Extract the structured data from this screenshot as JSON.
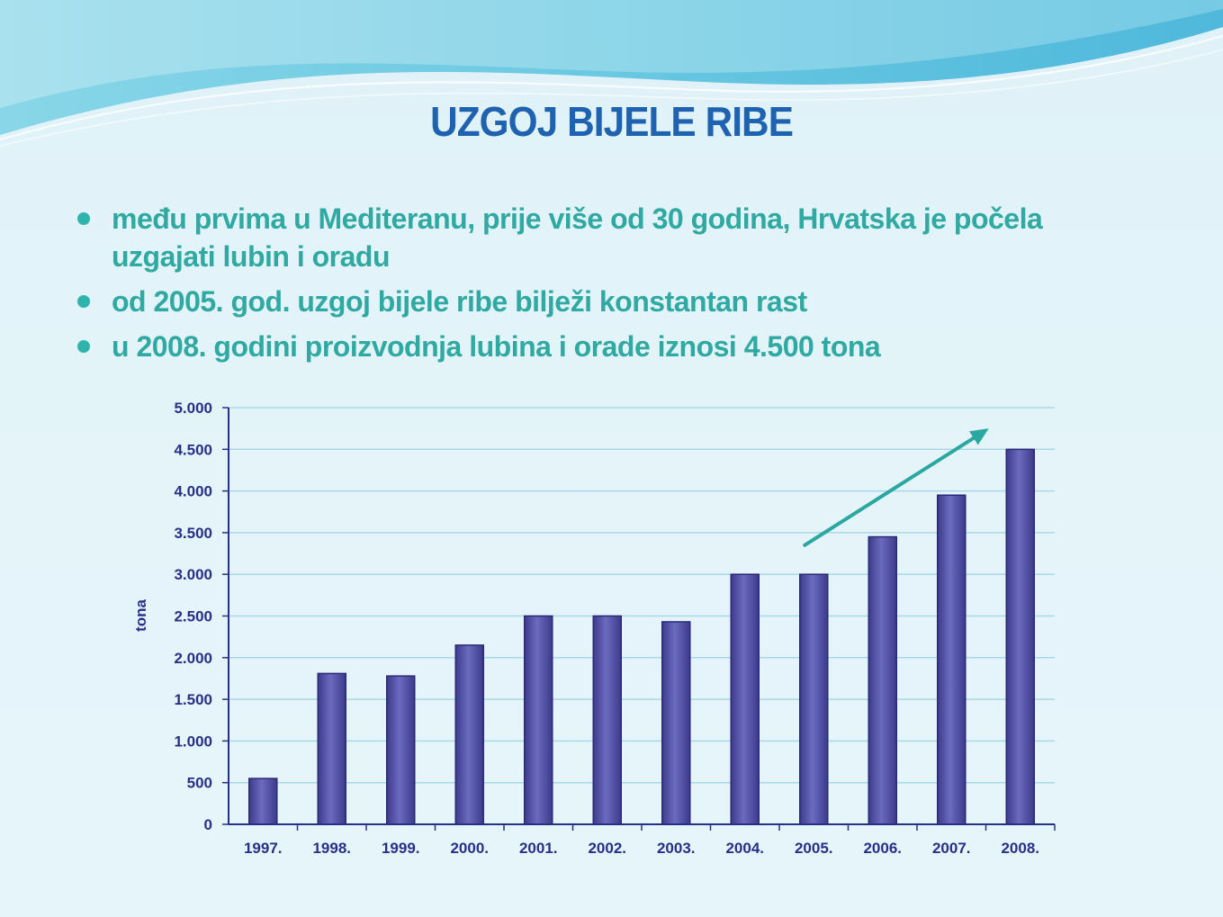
{
  "slide": {
    "title": "UZGOJ BIJELE RIBE",
    "bullets": [
      {
        "text": "među prvima u Mediteranu, prije više od 30 godina, Hrvatska je počela uzgajati lubin i oradu"
      },
      {
        "text": "od 2005. god. uzgoj bijele ribe bilježi konstantan rast"
      },
      {
        "text": "u 2008. godini  proizvodnja lubina i orade iznosi 4.500 tona"
      }
    ]
  },
  "chart_data": {
    "type": "bar",
    "categories": [
      "1997.",
      "1998.",
      "1999.",
      "2000.",
      "2001.",
      "2002.",
      "2003.",
      "2004.",
      "2005.",
      "2006.",
      "2007.",
      "2008."
    ],
    "values": [
      550,
      1810,
      1780,
      2150,
      2500,
      2500,
      2430,
      3000,
      3000,
      3450,
      3950,
      4500
    ],
    "title": "",
    "xlabel": "",
    "ylabel": "tona",
    "ylim": [
      0,
      5000
    ],
    "yticks": [
      0,
      500,
      1000,
      1500,
      2000,
      2500,
      3000,
      3500,
      4000,
      4500,
      5000
    ],
    "ytick_labels": [
      "0",
      "500",
      "1.000",
      "1.500",
      "2.000",
      "2.500",
      "3.000",
      "3.500",
      "4.000",
      "4.500",
      "5.000"
    ],
    "grid": true,
    "legend": "none",
    "annotation": {
      "type": "trend-arrow",
      "from_category": "2005.",
      "to_category": "2008."
    },
    "colors": {
      "bar": "#6b6bbf",
      "bar_dark": "#3c3a8c",
      "grid": "#a8d8e8",
      "axis": "#2a2f86",
      "arrow": "#2aa8a0"
    }
  }
}
